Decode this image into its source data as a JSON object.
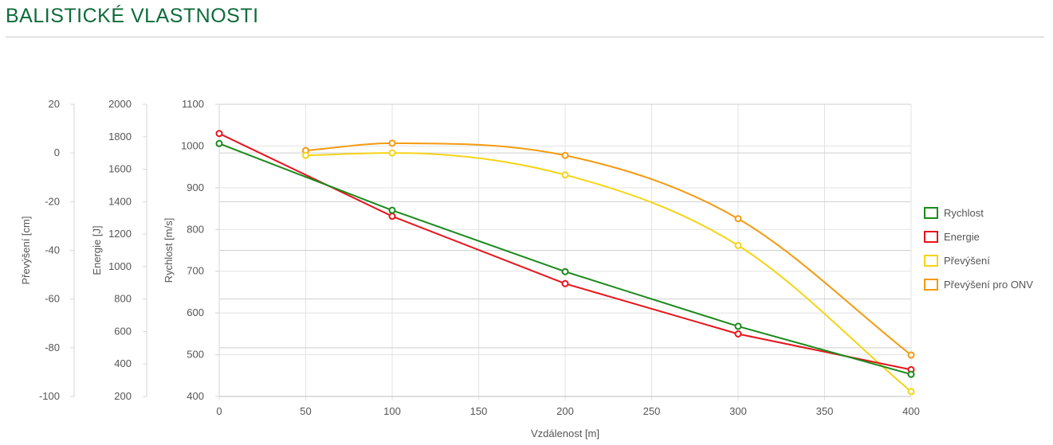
{
  "page": {
    "title": "BALISTICKÉ VLASTNOSTI"
  },
  "chart_data": {
    "type": "line",
    "title": "",
    "xlabel": "Vzdálenost [m]",
    "x_ticks": [
      "0",
      "50",
      "100",
      "150",
      "200",
      "250",
      "300",
      "350",
      "400"
    ],
    "xlim": [
      0,
      400
    ],
    "grid": true,
    "legend_position": "right",
    "axes": [
      {
        "id": "prevyseni",
        "label": "Převýšení [cm]",
        "ylim": [
          -100,
          20
        ],
        "ticks": [
          "20",
          "0",
          "-20",
          "-40",
          "-60",
          "-80",
          "-100"
        ],
        "gridlines": false
      },
      {
        "id": "energie",
        "label": "Energie [J]",
        "ylim": [
          200,
          2000
        ],
        "ticks": [
          "2000",
          "1800",
          "1600",
          "1400",
          "1200",
          "1000",
          "800",
          "600",
          "400",
          "200"
        ],
        "gridlines": false
      },
      {
        "id": "rychlost",
        "label": "Rychlost [m/s]",
        "ylim": [
          400,
          1100
        ],
        "ticks": [
          "1100",
          "1000",
          "900",
          "800",
          "700",
          "600",
          "500",
          "400"
        ],
        "gridlines": true
      }
    ],
    "series": [
      {
        "name": "Rychlost",
        "axis": "rychlost",
        "color": "#1a8a1a",
        "curve": "linear",
        "x": [
          0,
          100,
          200,
          300,
          400
        ],
        "y": [
          1006,
          846,
          699,
          568,
          453
        ]
      },
      {
        "name": "Energie",
        "axis": "energie",
        "color": "#e8141c",
        "curve": "linear",
        "x": [
          0,
          100,
          200,
          300,
          400
        ],
        "y": [
          1820,
          1310,
          895,
          585,
          365
        ]
      },
      {
        "name": "Převýšení",
        "axis": "prevyseni",
        "color": "#f5d416",
        "curve": "smooth",
        "x": [
          50,
          100,
          200,
          300,
          400
        ],
        "y": [
          -1,
          0,
          -9,
          -38,
          -98
        ]
      },
      {
        "name": "Převýšení pro ONV",
        "axis": "prevyseni",
        "color": "#f59a0f",
        "curve": "smooth",
        "x": [
          50,
          100,
          200,
          300,
          400
        ],
        "y": [
          1,
          4,
          -1,
          -27,
          -83
        ]
      }
    ]
  }
}
